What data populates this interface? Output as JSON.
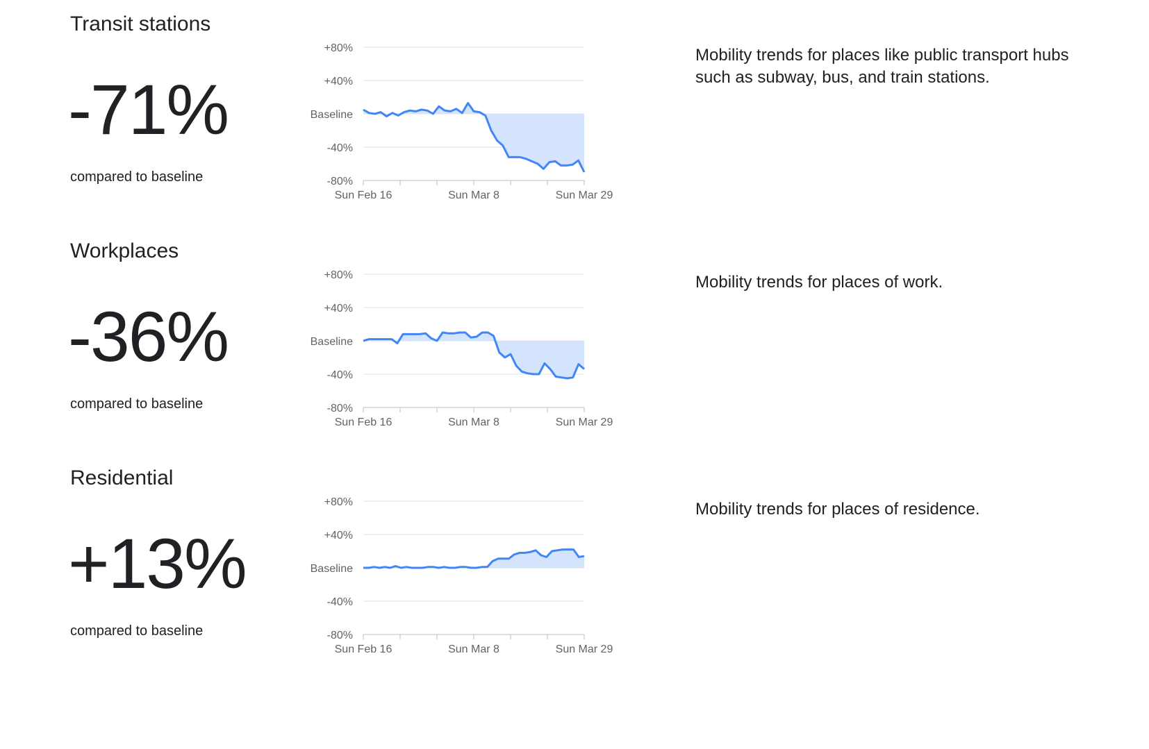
{
  "colors": {
    "line": "#4285f4",
    "fill": "#d2e3fc",
    "grid": "#e0e0e0",
    "axis": "#bdbdbd"
  },
  "sections": [
    {
      "title": "Transit stations",
      "value": "-71%",
      "compared": "compared to baseline",
      "description": "Mobility trends for places like public transport hubs such as subway, bus, and train stations."
    },
    {
      "title": "Workplaces",
      "value": "-36%",
      "compared": "compared to baseline",
      "description": "Mobility trends for places of work."
    },
    {
      "title": "Residential",
      "value": "+13%",
      "compared": "compared to baseline",
      "description": "Mobility trends for places of residence."
    }
  ],
  "chart_data": [
    {
      "type": "area",
      "x_labels": [
        "Sun Feb 16",
        "Sun Mar 8",
        "Sun Mar 29"
      ],
      "y_tick_labels": [
        "+80%",
        "+40%",
        "Baseline",
        "-40%",
        "-80%"
      ],
      "y_ticks": [
        80,
        40,
        0,
        -40,
        -80
      ],
      "ylim": [
        -80,
        80
      ],
      "grid": true,
      "fill_below_baseline": true,
      "values": [
        5,
        1,
        0,
        2,
        -3,
        1,
        -2,
        2,
        4,
        3,
        5,
        4,
        0,
        9,
        4,
        3,
        6,
        1,
        13,
        3,
        2,
        -2,
        -20,
        -32,
        -38,
        -52,
        -52,
        -52,
        -54,
        -57,
        -60,
        -66,
        -58,
        -57,
        -62,
        -62,
        -61,
        -56,
        -70
      ]
    },
    {
      "type": "area",
      "x_labels": [
        "Sun Feb 16",
        "Sun Mar 8",
        "Sun Mar 29"
      ],
      "y_tick_labels": [
        "+80%",
        "+40%",
        "Baseline",
        "-40%",
        "-80%"
      ],
      "y_ticks": [
        80,
        40,
        0,
        -40,
        -80
      ],
      "ylim": [
        -80,
        80
      ],
      "grid": true,
      "fill_below_baseline": true,
      "values": [
        0,
        2,
        2,
        2,
        2,
        2,
        -3,
        8,
        8,
        8,
        8,
        9,
        3,
        0,
        10,
        9,
        9,
        10,
        10,
        4,
        5,
        10,
        10,
        6,
        -14,
        -20,
        -16,
        -30,
        -37,
        -39,
        -40,
        -40,
        -27,
        -34,
        -43,
        -44,
        -45,
        -44,
        -28,
        -34
      ]
    },
    {
      "type": "area",
      "x_labels": [
        "Sun Feb 16",
        "Sun Mar 8",
        "Sun Mar 29"
      ],
      "y_tick_labels": [
        "+80%",
        "+40%",
        "Baseline",
        "-40%",
        "-80%"
      ],
      "y_ticks": [
        80,
        40,
        0,
        -40,
        -80
      ],
      "ylim": [
        -80,
        80
      ],
      "grid": true,
      "fill_below_baseline": false,
      "values": [
        0,
        0,
        1,
        0,
        1,
        0,
        2,
        0,
        1,
        0,
        0,
        0,
        1,
        1,
        0,
        1,
        0,
        0,
        1,
        1,
        0,
        0,
        1,
        1,
        8,
        11,
        11,
        11,
        16,
        18,
        18,
        19,
        21,
        15,
        13,
        20,
        21,
        22,
        22,
        22,
        13,
        14
      ]
    }
  ]
}
